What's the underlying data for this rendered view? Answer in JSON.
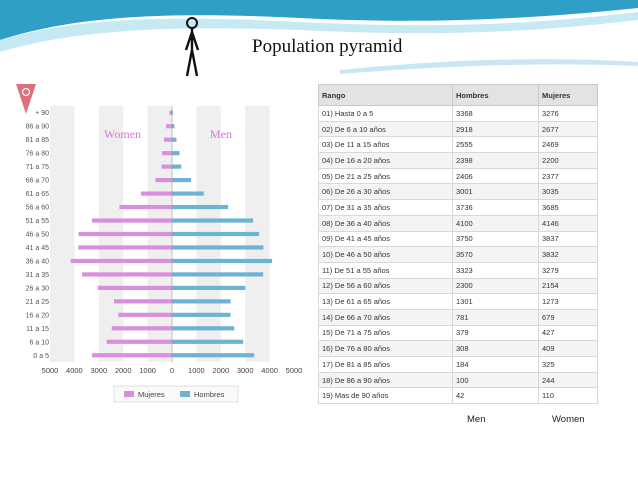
{
  "title": "Population pyramid",
  "chart_data": [
    {
      "type": "bar",
      "orientation": "horizontal",
      "categories": [
        "0 a 5",
        "6 a 10",
        "11 a 15",
        "16 a 20",
        "21 a 25",
        "26 a 30",
        "31 a 35",
        "36 a 40",
        "41 a 45",
        "46 a 50",
        "51 a 55",
        "56 a 60",
        "61 a 65",
        "66 a 70",
        "71 a 75",
        "76 a 80",
        "81 a 85",
        "86 a 90",
        "+ 90"
      ],
      "series": [
        {
          "name": "Mujeres",
          "side": "left",
          "color": "#d98fdd",
          "values": [
            3276,
            2677,
            2469,
            2200,
            2377,
            3035,
            3685,
            4146,
            3837,
            3832,
            3279,
            2154,
            1273,
            679,
            427,
            409,
            325,
            244,
            110
          ]
        },
        {
          "name": "Hombres",
          "side": "right",
          "color": "#6db3d4",
          "values": [
            3368,
            2918,
            2555,
            2398,
            2406,
            3001,
            3736,
            4100,
            3750,
            3570,
            3323,
            2300,
            1301,
            781,
            379,
            308,
            184,
            100,
            42
          ]
        }
      ],
      "xlim": [
        -5000,
        5000
      ],
      "xticks": [
        "5000",
        "4000",
        "3000",
        "2000",
        "1000",
        "0",
        "1000",
        "2000",
        "3000",
        "4000",
        "5000"
      ],
      "annotations": {
        "women": "Women",
        "men": "Men"
      },
      "legend_placement": "bottom",
      "grid": true
    },
    {
      "type": "table",
      "columns": [
        "Rango",
        "Hombres",
        "Mujeres"
      ],
      "rows": [
        [
          "01) Hasta 0 a 5",
          "3368",
          "3276"
        ],
        [
          "02) De 6 a 10 años",
          "2918",
          "2677"
        ],
        [
          "03) De 11 a 15 años",
          "2555",
          "2469"
        ],
        [
          "04) De 16 a 20 años",
          "2398",
          "2200"
        ],
        [
          "05) De 21 a 25 años",
          "2406",
          "2377"
        ],
        [
          "06) De 26 a 30 años",
          "3001",
          "3035"
        ],
        [
          "07) De 31 a 35 años",
          "3736",
          "3685"
        ],
        [
          "08) De 36 a 40 años",
          "4100",
          "4146"
        ],
        [
          "09) De 41 a 45 años",
          "3750",
          "3837"
        ],
        [
          "10) De 46 a 50 años",
          "3570",
          "3832"
        ],
        [
          "11) De 51 a 55 años",
          "3323",
          "3279"
        ],
        [
          "12) De 56 a 60 años",
          "2300",
          "2154"
        ],
        [
          "13) De 61 a 65 años",
          "1301",
          "1273"
        ],
        [
          "14) De 66 a 70 años",
          "781",
          "679"
        ],
        [
          "15) De 71 a 75 años",
          "379",
          "427"
        ],
        [
          "16) De 76 a 80 años",
          "308",
          "409"
        ],
        [
          "17) De 81 a 85 años",
          "184",
          "325"
        ],
        [
          "18) De 86 a 90 años",
          "100",
          "244"
        ],
        [
          "19) Mas de 90 años",
          "42",
          "110"
        ]
      ],
      "footer": {
        "men": "Men",
        "women": "Women"
      }
    }
  ],
  "colors": {
    "banner": "#2f9fc7",
    "banner_light": "#b9e3f1",
    "women": "#d98fdd",
    "men": "#6db3d4"
  }
}
